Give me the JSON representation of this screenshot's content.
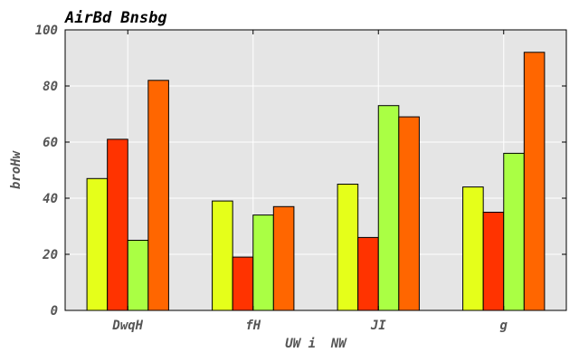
{
  "chart_data": {
    "type": "bar",
    "title": "AirBd Bnsbg",
    "xlabel": "UW i  NW",
    "ylabel": "broHw",
    "categories": [
      "DwqH",
      "fH",
      "JI",
      "g"
    ],
    "ylim": [
      0,
      100
    ],
    "yticks": [
      0,
      20,
      40,
      60,
      80,
      100
    ],
    "grid": true,
    "legend": "none",
    "series": [
      {
        "color": "#e5ff1a",
        "values": [
          47,
          39,
          45,
          44
        ]
      },
      {
        "color": "#ff3300",
        "values": [
          61,
          19,
          26,
          35
        ]
      },
      {
        "color": "#aaff44",
        "values": [
          25,
          34,
          73,
          56
        ]
      },
      {
        "color": "#ff6600",
        "values": [
          82,
          37,
          69,
          92
        ]
      }
    ],
    "colors": {
      "plot_background": "#e5e5e5",
      "grid": "#ffffff",
      "bar_edge": "#000000",
      "tick_text": "#555555",
      "title_text": "#000000"
    }
  }
}
